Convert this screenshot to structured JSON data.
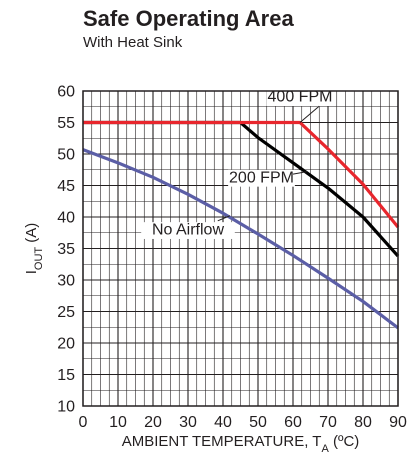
{
  "chart_data": {
    "type": "line",
    "title": "Safe Operating Area",
    "subtitle": "With Heat Sink",
    "ylabel": {
      "main": "I",
      "sub": "OUT",
      "unit": " (A)"
    },
    "xlabel": {
      "main": "AMBIENT TEMPERATURE, T",
      "sub": "A",
      "unit": " (ºC)"
    },
    "xlim": [
      0,
      90
    ],
    "ylim": [
      10,
      60
    ],
    "x_ticks": [
      "0",
      "10",
      "20",
      "30",
      "40",
      "50",
      "60",
      "70",
      "80",
      "90"
    ],
    "y_ticks": [
      "10",
      "15",
      "20",
      "25",
      "30",
      "35",
      "40",
      "45",
      "50",
      "55",
      "60"
    ],
    "grid": true,
    "series": [
      {
        "name": "400 FPM",
        "color": "#e8262d",
        "x": [
          0,
          10,
          20,
          30,
          40,
          50,
          60,
          62,
          70,
          80,
          90
        ],
        "y": [
          55,
          55,
          55,
          55,
          55,
          55,
          55,
          55,
          50.8,
          45.2,
          38.4
        ]
      },
      {
        "name": "200 FPM",
        "color": "#000000",
        "x": [
          0,
          10,
          20,
          30,
          40,
          45,
          50,
          60,
          70,
          80,
          90
        ],
        "y": [
          55,
          55,
          55,
          55,
          55,
          55,
          52.6,
          48.6,
          44.6,
          40,
          33.8
        ]
      },
      {
        "name": "No Airflow",
        "color": "#5b5ea6",
        "x": [
          0,
          10,
          20,
          30,
          40,
          50,
          60,
          70,
          80,
          90
        ],
        "y": [
          50.7,
          48.6,
          46.3,
          43.6,
          40.6,
          37.3,
          33.9,
          30.3,
          26.6,
          22.4
        ]
      }
    ]
  }
}
